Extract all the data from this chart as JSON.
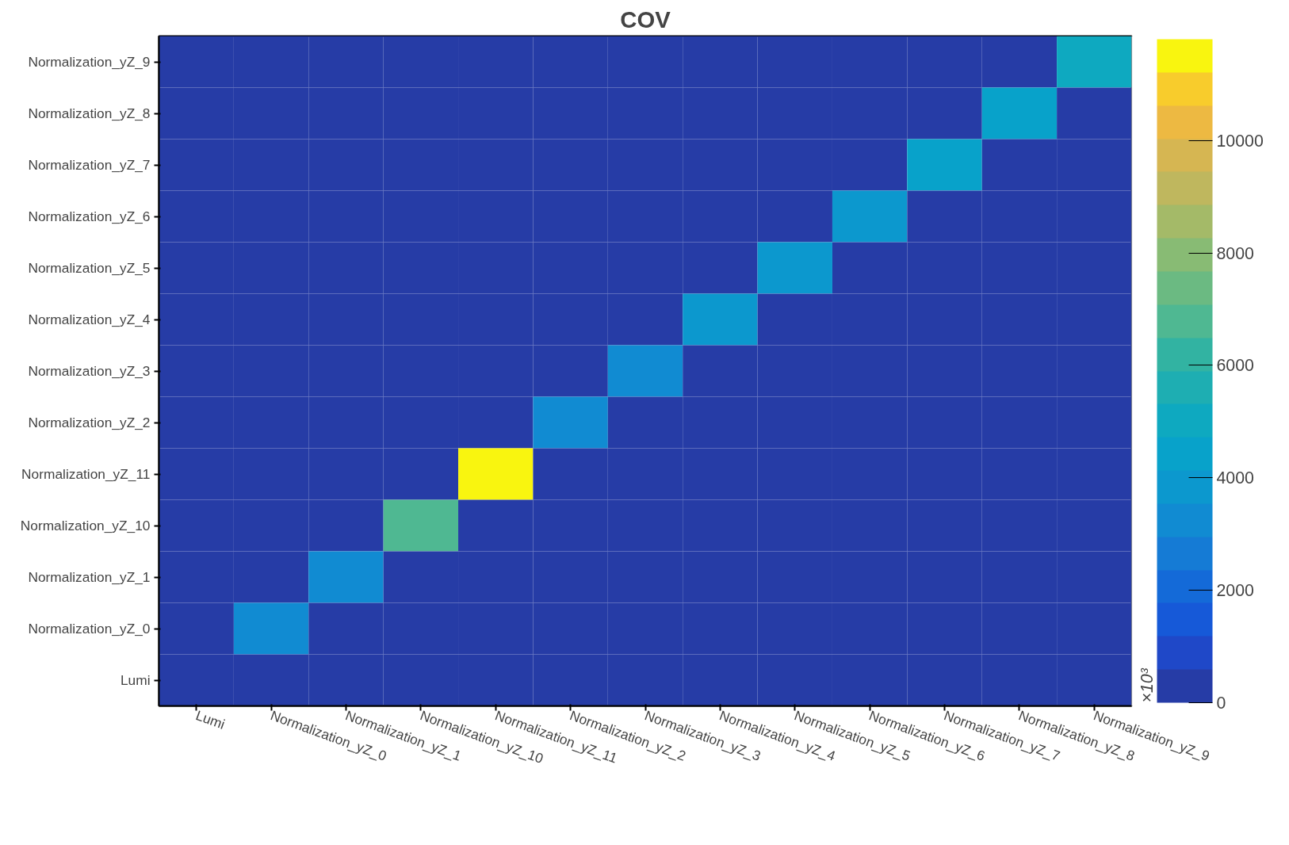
{
  "chart_data": {
    "type": "heatmap",
    "title": "COV",
    "clabel": "×10³",
    "categories": [
      "Lumi",
      "Normalization_yZ_0",
      "Normalization_yZ_1",
      "Normalization_yZ_10",
      "Normalization_yZ_11",
      "Normalization_yZ_2",
      "Normalization_yZ_3",
      "Normalization_yZ_4",
      "Normalization_yZ_5",
      "Normalization_yZ_6",
      "Normalization_yZ_7",
      "Normalization_yZ_8",
      "Normalization_yZ_9"
    ],
    "y_categories": [
      "Normalization_yZ_9",
      "Normalization_yZ_8",
      "Normalization_yZ_7",
      "Normalization_yZ_6",
      "Normalization_yZ_5",
      "Normalization_yZ_4",
      "Normalization_yZ_3",
      "Normalization_yZ_2",
      "Normalization_yZ_11",
      "Normalization_yZ_10",
      "Normalization_yZ_1",
      "Normalization_yZ_0",
      "Lumi"
    ],
    "cells": [
      [
        0,
        0,
        0,
        0,
        0,
        0,
        0,
        0,
        0,
        0,
        0,
        0,
        5000
      ],
      [
        0,
        0,
        0,
        0,
        0,
        0,
        0,
        0,
        0,
        0,
        0,
        4400,
        0
      ],
      [
        0,
        0,
        0,
        0,
        0,
        0,
        0,
        0,
        0,
        0,
        4300,
        0,
        0
      ],
      [
        0,
        0,
        0,
        0,
        0,
        0,
        0,
        0,
        0,
        4000,
        0,
        0,
        0
      ],
      [
        0,
        0,
        0,
        0,
        0,
        0,
        0,
        0,
        3900,
        0,
        0,
        0,
        0
      ],
      [
        0,
        0,
        0,
        0,
        0,
        0,
        0,
        3900,
        0,
        0,
        0,
        0,
        0
      ],
      [
        0,
        0,
        0,
        0,
        0,
        0,
        3500,
        0,
        0,
        0,
        0,
        0,
        0
      ],
      [
        0,
        0,
        0,
        0,
        0,
        3200,
        0,
        0,
        0,
        0,
        0,
        0,
        0
      ],
      [
        0,
        0,
        0,
        0,
        11800,
        0,
        0,
        0,
        0,
        0,
        0,
        0,
        0
      ],
      [
        0,
        0,
        0,
        7000,
        0,
        0,
        0,
        0,
        0,
        0,
        0,
        0,
        0
      ],
      [
        0,
        0,
        3200,
        0,
        0,
        0,
        0,
        0,
        0,
        0,
        0,
        0,
        0
      ],
      [
        0,
        3300,
        0,
        0,
        0,
        0,
        0,
        0,
        0,
        0,
        0,
        0,
        0
      ],
      [
        0,
        0,
        0,
        0,
        0,
        0,
        0,
        0,
        0,
        0,
        0,
        0,
        0
      ]
    ],
    "clim": [
      0,
      11800
    ],
    "cticks": [
      0,
      2000,
      4000,
      6000,
      8000,
      10000
    ],
    "grid": false
  }
}
